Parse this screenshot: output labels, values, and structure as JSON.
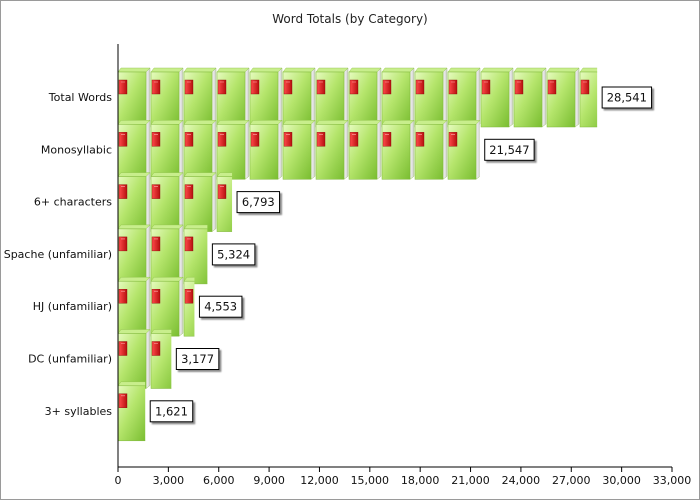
{
  "chart_data": {
    "type": "bar",
    "orientation": "horizontal",
    "title": "Word Totals (by Category)",
    "xlabel": "",
    "ylabel": "",
    "categories": [
      "Total Words",
      "Monosyllabic",
      "6+ characters",
      "Spache (unfamiliar)",
      "HJ (unfamiliar)",
      "DC (unfamiliar)",
      "3+ syllables"
    ],
    "values": [
      28541,
      21547,
      6793,
      5324,
      4553,
      3177,
      1621
    ],
    "value_labels": [
      "28,541",
      "21,547",
      "6,793",
      "5,324",
      "4,553",
      "3,177",
      "1,621"
    ],
    "xlim": [
      0,
      33000
    ],
    "xticks": [
      0,
      3000,
      6000,
      9000,
      12000,
      15000,
      18000,
      21000,
      24000,
      27000,
      30000,
      33000
    ],
    "xtick_labels": [
      "0",
      "3,000",
      "6,000",
      "9,000",
      "12,000",
      "15,000",
      "18,000",
      "21,000",
      "24,000",
      "27,000",
      "30,000",
      "33,000"
    ],
    "grid": false,
    "legend": "none",
    "bar_style": "pictograph",
    "bar_icon": "book-icon",
    "colors": {
      "book_cover_light": "#d6f59f",
      "book_cover_mid": "#a9dd5c",
      "book_cover_dark": "#72b82b",
      "book_spine": "#d42222",
      "axis": "#000000",
      "label_box_border": "#000000"
    }
  }
}
